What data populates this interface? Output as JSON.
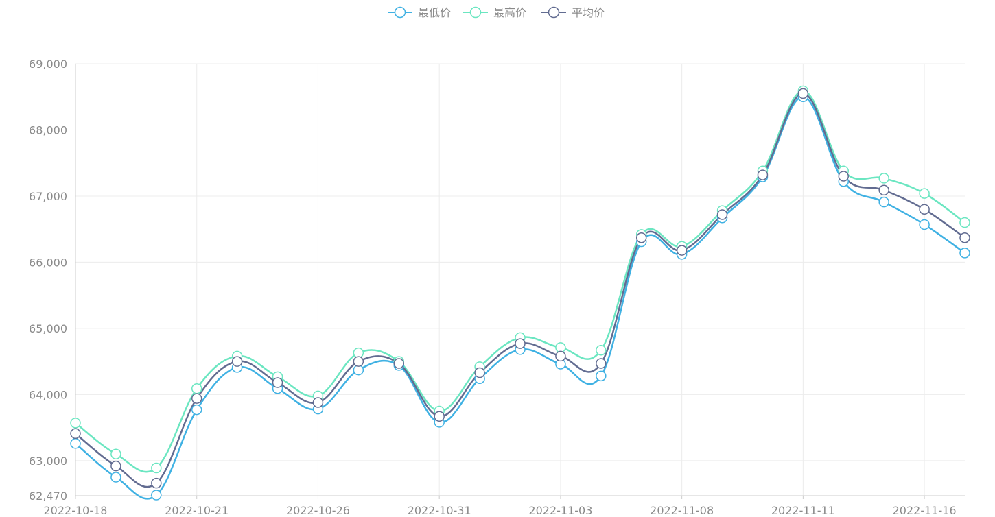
{
  "chart_data": {
    "type": "line",
    "smooth": true,
    "x": [
      "2022-10-18",
      "2022-10-19",
      "2022-10-20",
      "2022-10-21",
      "2022-10-24",
      "2022-10-25",
      "2022-10-26",
      "2022-10-27",
      "2022-10-28",
      "2022-10-31",
      "2022-11-01",
      "2022-11-02",
      "2022-11-03",
      "2022-11-04",
      "2022-11-07",
      "2022-11-08",
      "2022-11-09",
      "2022-11-10",
      "2022-11-11",
      "2022-11-14",
      "2022-11-15",
      "2022-11-16",
      "2022-11-17"
    ],
    "x_tick_labels": [
      "2022-10-18",
      "2022-10-21",
      "2022-10-26",
      "2022-10-31",
      "2022-11-03",
      "2022-11-08",
      "2022-11-11",
      "2022-11-16"
    ],
    "x_tick_indices": [
      0,
      3,
      6,
      9,
      12,
      15,
      18,
      21
    ],
    "ylim": [
      62470,
      69000
    ],
    "y_ticks": [
      62470,
      63000,
      64000,
      65000,
      66000,
      67000,
      68000,
      69000
    ],
    "y_tick_labels": [
      "62,470",
      "63,000",
      "64,000",
      "65,000",
      "66,000",
      "67,000",
      "68,000",
      "69,000"
    ],
    "grid": true,
    "legend_position": "top-center",
    "series": [
      {
        "name": "最低价",
        "color": "#3fb1e3",
        "values": [
          63260,
          62750,
          62480,
          63770,
          64410,
          64090,
          63780,
          64370,
          64440,
          63580,
          64240,
          64680,
          64460,
          64280,
          66310,
          66120,
          66670,
          67290,
          68500,
          67220,
          66910,
          66570,
          66140
        ]
      },
      {
        "name": "最高价",
        "color": "#6be6c1",
        "values": [
          63570,
          63100,
          62890,
          64090,
          64580,
          64270,
          63980,
          64630,
          64500,
          63750,
          64420,
          64860,
          64710,
          64670,
          66420,
          66240,
          66780,
          67380,
          68590,
          67380,
          67270,
          67040,
          66600
        ]
      },
      {
        "name": "平均价",
        "color": "#626c91",
        "values": [
          63410,
          62920,
          62660,
          63940,
          64500,
          64180,
          63880,
          64500,
          64470,
          63670,
          64330,
          64770,
          64580,
          64470,
          66370,
          66180,
          66720,
          67320,
          68550,
          67300,
          67090,
          66800,
          66370
        ]
      }
    ]
  }
}
